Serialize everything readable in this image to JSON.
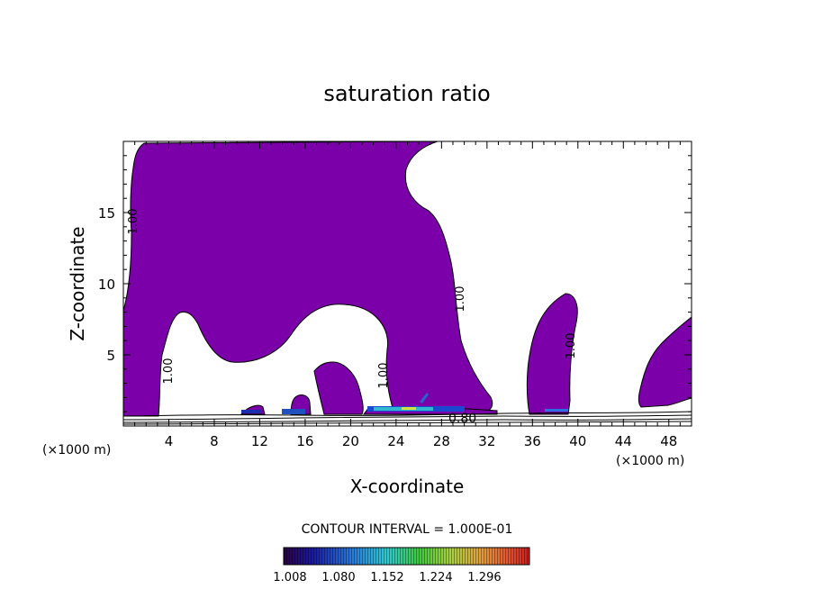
{
  "chart_data": {
    "type": "contour",
    "title": "saturation ratio",
    "xlabel": "X-coordinate",
    "ylabel": "Z-coordinate",
    "x_unit_left": "(×1000 m)",
    "x_unit_right": "(×1000 m)",
    "xlim": [
      0,
      50
    ],
    "ylim": [
      0,
      20
    ],
    "xticks": [
      "4",
      "8",
      "12",
      "16",
      "20",
      "24",
      "28",
      "32",
      "36",
      "40",
      "44",
      "48"
    ],
    "yticks": [
      "5",
      "10",
      "15"
    ],
    "contour_labels": [
      "1.00",
      "1.00",
      "1.00",
      "1.00",
      "1.00",
      "0.80"
    ],
    "contour_interval_text": "CONTOUR INTERVAL = 1.000E-01",
    "colorbar": {
      "tick_labels": [
        "1.008",
        "1.080",
        "1.152",
        "1.224",
        "1.296"
      ],
      "min": 1.0,
      "max": 1.3
    },
    "fill_color": "#7b00aa"
  }
}
